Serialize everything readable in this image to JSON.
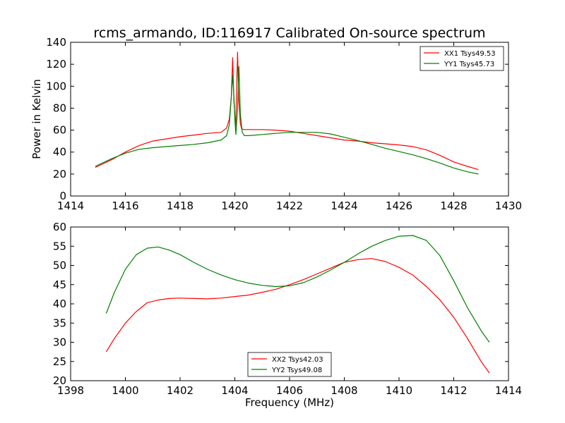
{
  "chart_data": [
    {
      "type": "line",
      "title": "rcms_armando, ID:116917 Calibrated On-source spectrum",
      "xlabel": "",
      "ylabel": "Power in Kelvin",
      "xlim": [
        1414,
        1430
      ],
      "ylim": [
        0,
        140
      ],
      "xticks": [
        "1414",
        "1416",
        "1418",
        "1420",
        "1422",
        "1424",
        "1426",
        "1428",
        "1430"
      ],
      "yticks": [
        "0",
        "20",
        "40",
        "60",
        "80",
        "100",
        "120",
        "140"
      ],
      "legend_position": "top-right",
      "series": [
        {
          "name": "XX1 Tsys49.53",
          "color": "#ff0000",
          "x": [
            1414.9,
            1415.5,
            1416.0,
            1416.5,
            1417.0,
            1417.5,
            1418.0,
            1418.5,
            1419.0,
            1419.5,
            1419.7,
            1419.8,
            1419.87,
            1419.92,
            1419.97,
            1420.03,
            1420.1,
            1420.14,
            1420.2,
            1420.25,
            1420.35,
            1420.5,
            1421.0,
            1421.5,
            1422.0,
            1422.5,
            1423.0,
            1423.5,
            1424.0,
            1424.5,
            1425.0,
            1425.5,
            1426.0,
            1426.5,
            1427.0,
            1427.5,
            1428.0,
            1428.5,
            1428.9
          ],
          "values": [
            26,
            33,
            40,
            46,
            50,
            52,
            54,
            55.5,
            57,
            58,
            62,
            70,
            90,
            126,
            85,
            63,
            131,
            90,
            66,
            61,
            60.5,
            60.5,
            60.5,
            60,
            59,
            57,
            55,
            53,
            51,
            50,
            48.5,
            47.5,
            46.5,
            45,
            42,
            37,
            31,
            27,
            24
          ]
        },
        {
          "name": "YY1 Tsys45.73",
          "color": "#008000",
          "x": [
            1414.9,
            1415.5,
            1416.0,
            1416.5,
            1417.0,
            1417.5,
            1418.0,
            1418.5,
            1419.0,
            1419.5,
            1419.7,
            1419.8,
            1419.87,
            1419.92,
            1419.97,
            1420.0,
            1420.04,
            1420.1,
            1420.15,
            1420.2,
            1420.27,
            1420.35,
            1420.5,
            1421.0,
            1421.5,
            1422.0,
            1422.5,
            1423.0,
            1423.5,
            1424.0,
            1424.5,
            1425.0,
            1425.5,
            1426.0,
            1426.5,
            1427.0,
            1427.5,
            1428.0,
            1428.5,
            1428.9
          ],
          "values": [
            27,
            34,
            39,
            42.5,
            44,
            45,
            46,
            47,
            48.5,
            51,
            55,
            65,
            90,
            110,
            90,
            70,
            56,
            80,
            118,
            75,
            58,
            55,
            55,
            56,
            57,
            58,
            58,
            58,
            56.5,
            53.5,
            50.5,
            47,
            43.5,
            40.5,
            37.5,
            34,
            30,
            25.5,
            22,
            20
          ]
        }
      ]
    },
    {
      "type": "line",
      "title": "",
      "xlabel": "Frequency (MHz)",
      "ylabel": "",
      "xlim": [
        1398,
        1414
      ],
      "ylim": [
        20,
        60
      ],
      "xticks": [
        "1398",
        "1400",
        "1402",
        "1404",
        "1406",
        "1408",
        "1410",
        "1412",
        "1414"
      ],
      "yticks": [
        "20",
        "25",
        "30",
        "35",
        "40",
        "45",
        "50",
        "55",
        "60"
      ],
      "legend_position": "bottom-center",
      "series": [
        {
          "name": "XX2 Tsys42.03",
          "color": "#ff0000",
          "x": [
            1399.3,
            1399.6,
            1400.0,
            1400.4,
            1400.8,
            1401.2,
            1401.6,
            1402.0,
            1402.5,
            1403.0,
            1403.5,
            1404.0,
            1404.5,
            1405.0,
            1405.5,
            1406.0,
            1406.5,
            1407.0,
            1407.5,
            1408.0,
            1408.5,
            1409.0,
            1409.5,
            1410.0,
            1410.5,
            1411.0,
            1411.5,
            1412.0,
            1412.5,
            1413.0,
            1413.3
          ],
          "values": [
            27.5,
            31,
            35,
            38,
            40.3,
            41,
            41.4,
            41.5,
            41.4,
            41.3,
            41.5,
            41.9,
            42.3,
            43,
            43.8,
            45,
            46.3,
            47.8,
            49.3,
            50.8,
            51.5,
            51.8,
            51,
            49.5,
            47.5,
            44.5,
            41,
            36.5,
            31,
            25,
            22
          ]
        },
        {
          "name": "YY2 Tsys49.08",
          "color": "#008000",
          "x": [
            1399.3,
            1399.6,
            1400.0,
            1400.4,
            1400.8,
            1401.2,
            1401.6,
            1402.0,
            1402.5,
            1403.0,
            1403.5,
            1404.0,
            1404.5,
            1405.0,
            1405.5,
            1406.0,
            1406.5,
            1407.0,
            1407.5,
            1408.0,
            1408.5,
            1409.0,
            1409.5,
            1410.0,
            1410.5,
            1411.0,
            1411.5,
            1412.0,
            1412.5,
            1413.0,
            1413.3
          ],
          "values": [
            37.5,
            43,
            49,
            52.8,
            54.5,
            54.8,
            54,
            52.8,
            50.8,
            49,
            47.5,
            46.3,
            45.4,
            44.8,
            44.5,
            44.7,
            45.5,
            47,
            48.8,
            50.8,
            53,
            55,
            56.5,
            57.6,
            57.8,
            56.5,
            52.5,
            46,
            39,
            33,
            30
          ]
        }
      ]
    }
  ]
}
